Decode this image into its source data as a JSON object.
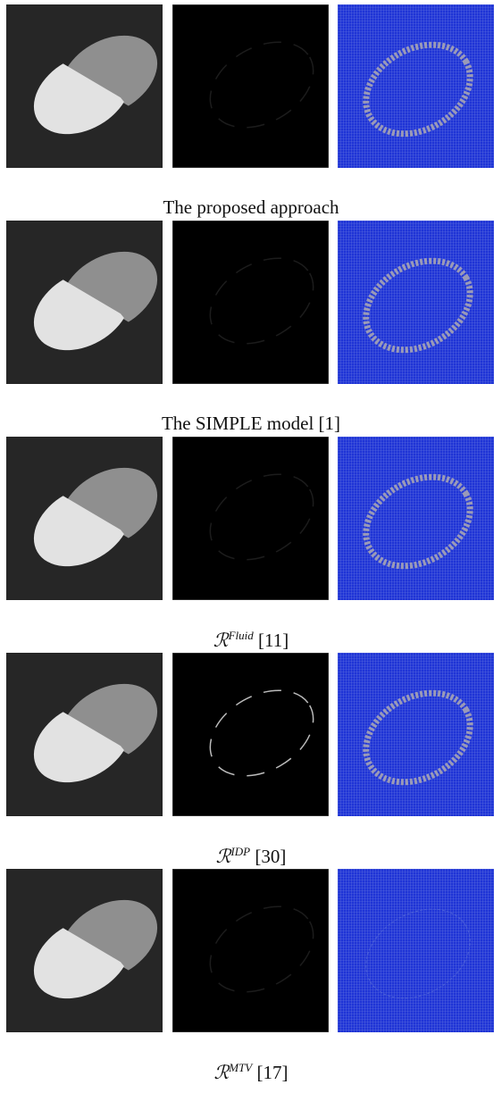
{
  "rows": [
    {
      "caption": "The proposed approach"
    },
    {
      "caption": "The SIMPLE model [1]"
    },
    {
      "caption": {
        "symbol": "ℛ",
        "superscript": "Fluid",
        "citation": "[11]"
      }
    },
    {
      "caption": {
        "symbol": "ℛ",
        "superscript": "IDP",
        "citation": "[30]"
      }
    },
    {
      "caption": {
        "symbol": "ℛ",
        "superscript": "MTV",
        "citation": "[17]"
      }
    }
  ]
}
